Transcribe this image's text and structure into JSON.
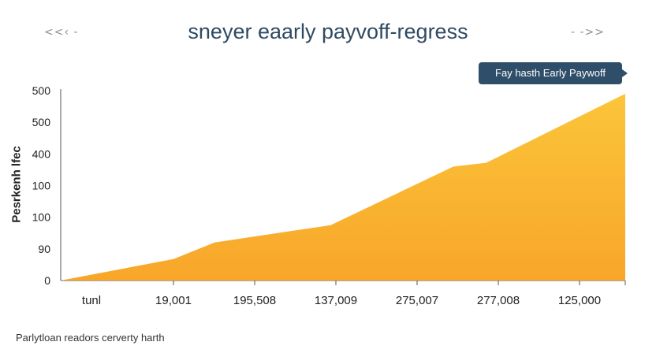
{
  "nav": {
    "prev": "<<‹ -",
    "next": "- ->>"
  },
  "callout_text": "Fay hasth Early Paywoff",
  "footer_text": "Parlytloan readors cerverty harth",
  "colors": {
    "area_top": "#fbc53a",
    "area_bottom": "#f8a62a",
    "title": "#2e4a63",
    "callout": "#2f4e69"
  },
  "chart_data": {
    "type": "area",
    "title": "sneyer eaarly payvoff-regress",
    "xlabel": "",
    "ylabel": "Pesrkenh lfec",
    "y_ticks": [
      "0",
      "90",
      "100",
      "100",
      "400",
      "500",
      "500"
    ],
    "x_ticks": [
      "tunl",
      "19,001",
      "195,508",
      "137,009",
      "275,007",
      "277,008",
      "125,000"
    ],
    "ylim": [
      0,
      6
    ],
    "series": [
      {
        "values": [
          {
            "x": 0.0,
            "y": 0.0
          },
          {
            "x": 1.38,
            "y": 0.68
          },
          {
            "x": 1.88,
            "y": 1.2
          },
          {
            "x": 3.3,
            "y": 1.75
          },
          {
            "x": 4.8,
            "y": 3.6
          },
          {
            "x": 5.2,
            "y": 3.72
          },
          {
            "x": 6.9,
            "y": 5.9
          }
        ]
      }
    ]
  }
}
